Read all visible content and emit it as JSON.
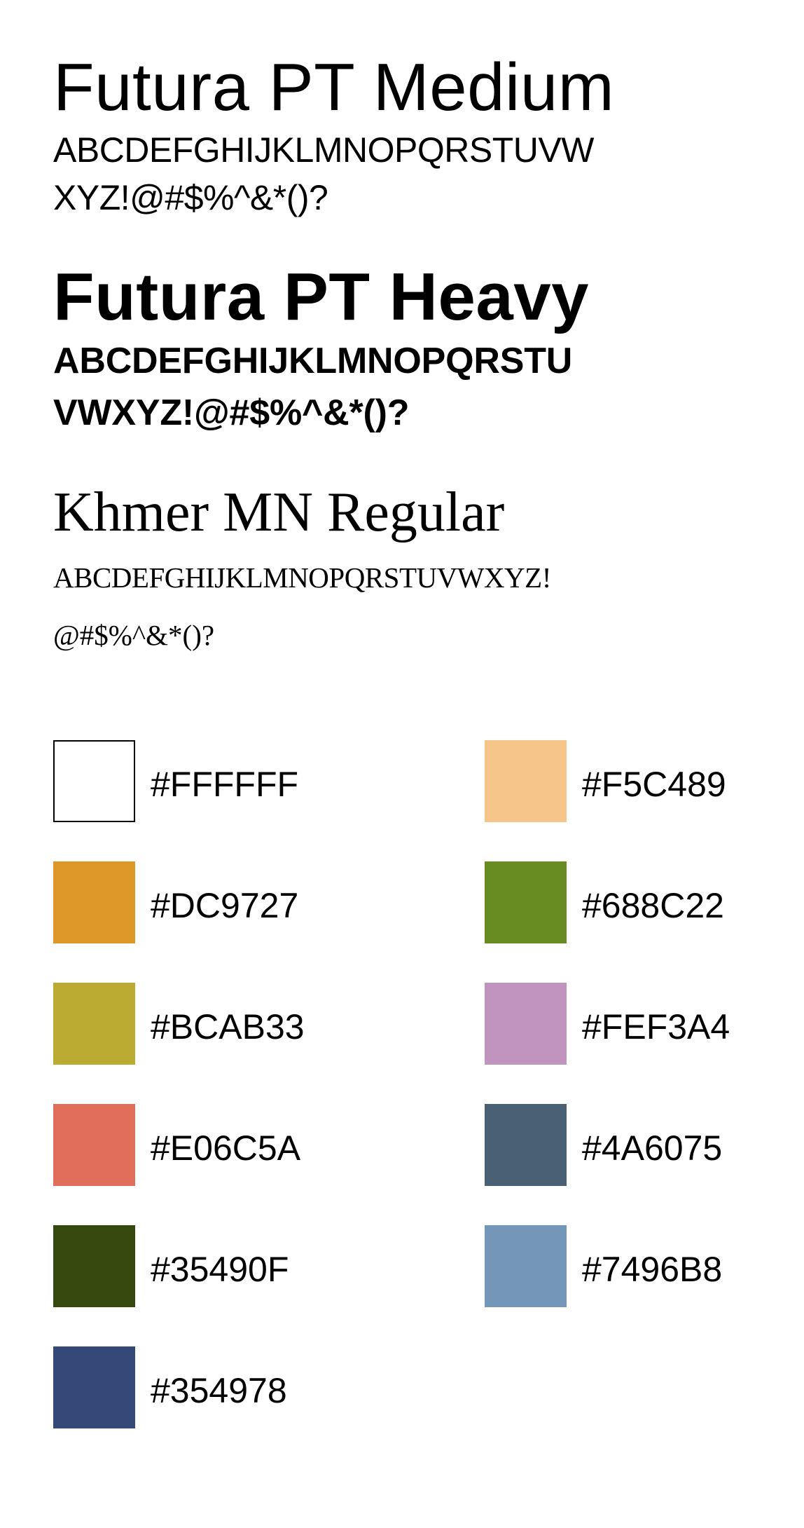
{
  "fonts": [
    {
      "name": "Futura PT Medium",
      "glyphs": [
        "ABCDEFGHIJKLMNOPQRSTUVW",
        "XYZ!@#$%^&*()?"
      ]
    },
    {
      "name": "Futura PT Heavy",
      "glyphs": [
        "ABCDEFGHIJKLMNOPQRSTU",
        "VWXYZ!@#$%^&*()?"
      ]
    },
    {
      "name": "Khmer MN Regular",
      "glyphs": [
        "ABCDEFGHIJKLMNOPQRSTUVWXYZ!",
        "@#$%^&*()?"
      ]
    }
  ],
  "swatches": [
    {
      "hex": "#FFFFFF",
      "color": "#FFFFFF",
      "outlined": true
    },
    {
      "hex": "#F5C489",
      "color": "#F5C489",
      "outlined": false
    },
    {
      "hex": "#DC9727",
      "color": "#DC9727",
      "outlined": false
    },
    {
      "hex": "#688C22",
      "color": "#688C22",
      "outlined": false
    },
    {
      "hex": "#BCAB33",
      "color": "#BCAB33",
      "outlined": false
    },
    {
      "hex": "#FEF3A4",
      "color": "#C194C0",
      "outlined": false
    },
    {
      "hex": "#E06C5A",
      "color": "#E06C5A",
      "outlined": false
    },
    {
      "hex": "#4A6075",
      "color": "#4A6075",
      "outlined": false
    },
    {
      "hex": "#35490F",
      "color": "#35490F",
      "outlined": false
    },
    {
      "hex": "#7496B8",
      "color": "#7496B8",
      "outlined": false
    },
    {
      "hex": "#354978",
      "color": "#354978",
      "outlined": false
    }
  ]
}
